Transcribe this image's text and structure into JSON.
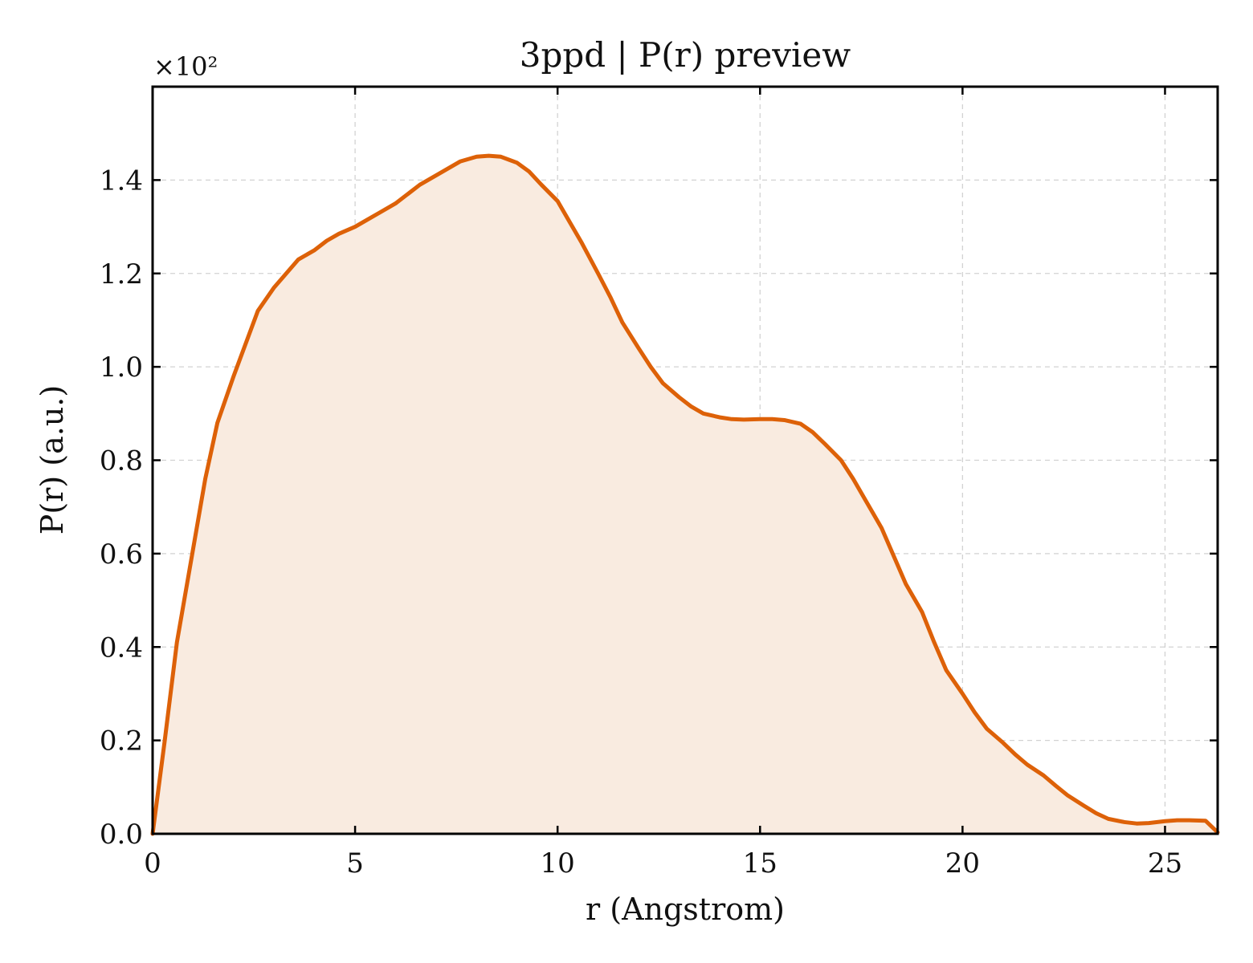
{
  "chart_data": {
    "type": "area",
    "title": "3ppd | P(r) preview",
    "xlabel": "r (Angstrom)",
    "ylabel": "P(r) (a.u.)",
    "y_multiplier": "×10²",
    "xlim": [
      0,
      26.3
    ],
    "ylim": [
      0,
      1.6
    ],
    "x_ticks": [
      0,
      5,
      10,
      15,
      20,
      25
    ],
    "y_ticks": [
      0.0,
      0.2,
      0.4,
      0.6,
      0.8,
      1.0,
      1.2,
      1.4
    ],
    "x_tick_labels": [
      "0",
      "5",
      "10",
      "15",
      "20",
      "25"
    ],
    "y_tick_labels": [
      "0.0",
      "0.2",
      "0.4",
      "0.6",
      "0.8",
      "1.0",
      "1.2",
      "1.4"
    ],
    "grid": true,
    "line_color": "#dd6108",
    "fill_color": "#f9ebe0",
    "series": [
      {
        "x": [
          0,
          0.3,
          0.6,
          1.0,
          1.3,
          1.6,
          2.0,
          2.3,
          2.6,
          3.0,
          3.3,
          3.6,
          4.0,
          4.3,
          4.6,
          5.0,
          5.3,
          5.6,
          6.0,
          6.3,
          6.6,
          7.0,
          7.3,
          7.6,
          8.0,
          8.3,
          8.6,
          9.0,
          9.3,
          9.6,
          10.0,
          10.3,
          10.6,
          11.0,
          11.3,
          11.6,
          12.0,
          12.3,
          12.6,
          13.0,
          13.3,
          13.6,
          14.0,
          14.3,
          14.6,
          15.0,
          15.3,
          15.6,
          16.0,
          16.3,
          16.6,
          17.0,
          17.3,
          17.6,
          18.0,
          18.3,
          18.6,
          19.0,
          19.3,
          19.6,
          20.0,
          20.3,
          20.6,
          21.0,
          21.3,
          21.6,
          22.0,
          22.3,
          22.6,
          23.0,
          23.3,
          23.6,
          24.0,
          24.3,
          24.6,
          25.0,
          25.3,
          25.6,
          26.0,
          26.3
        ],
        "y": [
          0.0,
          0.2,
          0.41,
          0.61,
          0.76,
          0.88,
          0.98,
          1.05,
          1.12,
          1.17,
          1.2,
          1.23,
          1.25,
          1.27,
          1.285,
          1.3,
          1.315,
          1.33,
          1.35,
          1.37,
          1.39,
          1.41,
          1.425,
          1.44,
          1.45,
          1.452,
          1.45,
          1.437,
          1.418,
          1.39,
          1.355,
          1.31,
          1.265,
          1.2,
          1.15,
          1.095,
          1.04,
          1.0,
          0.965,
          0.935,
          0.915,
          0.9,
          0.892,
          0.888,
          0.887,
          0.888,
          0.888,
          0.886,
          0.878,
          0.86,
          0.835,
          0.8,
          0.76,
          0.715,
          0.655,
          0.595,
          0.535,
          0.475,
          0.41,
          0.35,
          0.3,
          0.26,
          0.225,
          0.195,
          0.17,
          0.148,
          0.125,
          0.103,
          0.082,
          0.06,
          0.044,
          0.032,
          0.025,
          0.022,
          0.023,
          0.027,
          0.029,
          0.029,
          0.028,
          0.003
        ]
      }
    ]
  }
}
